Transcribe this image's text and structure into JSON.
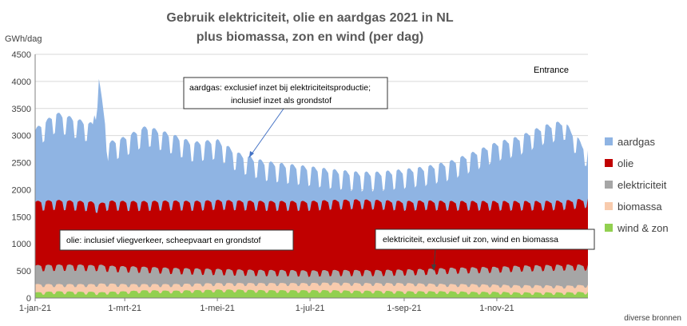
{
  "chart_data": {
    "type": "area",
    "stacked": true,
    "title_line1": "Gebruik elektriciteit, olie en aardgas 2021 in NL",
    "title_line2": "plus biomassa, zon en wind (per dag)",
    "ylabel": "GWh/dag",
    "ylim": [
      0,
      4500
    ],
    "yticks": [
      "0",
      "500",
      "1000",
      "1500",
      "2000",
      "2500",
      "3000",
      "3500",
      "4000",
      "4500"
    ],
    "xlim": [
      "2021-01-01",
      "2021-12-31"
    ],
    "xticks": [
      {
        "date": "2021-01-01",
        "label": "1-jan-21"
      },
      {
        "date": "2021-03-01",
        "label": "1-mrt-21"
      },
      {
        "date": "2021-05-01",
        "label": "1-mei-21"
      },
      {
        "date": "2021-07-01",
        "label": "1-jul-21"
      },
      {
        "date": "2021-09-01",
        "label": "1-sep-21"
      },
      {
        "date": "2021-11-01",
        "label": "1-nov-21"
      }
    ],
    "grid": true,
    "legend_position": "right",
    "series_order_bottom_to_top": [
      "wind & zon",
      "biomassa",
      "elektriciteit",
      "olie",
      "aardgas"
    ],
    "legend": [
      {
        "name": "aardgas",
        "color": "#8fb4e3"
      },
      {
        "name": "olie",
        "color": "#c00000"
      },
      {
        "name": "elektriciteit",
        "color": "#a6a6a6"
      },
      {
        "name": "biomassa",
        "color": "#f8cbad"
      },
      {
        "name": "wind & zon",
        "color": "#92d050"
      }
    ],
    "cumulative_tops": {
      "dates": [
        "2021-01-01",
        "2021-01-15",
        "2021-02-01",
        "2021-02-08",
        "2021-02-12",
        "2021-02-18",
        "2021-03-01",
        "2021-03-15",
        "2021-04-01",
        "2021-04-15",
        "2021-05-01",
        "2021-05-15",
        "2021-06-01",
        "2021-06-15",
        "2021-07-01",
        "2021-07-15",
        "2021-08-01",
        "2021-08-15",
        "2021-09-01",
        "2021-09-15",
        "2021-10-01",
        "2021-10-15",
        "2021-11-01",
        "2021-11-15",
        "2021-12-01",
        "2021-12-15",
        "2021-12-31"
      ],
      "aardgas": [
        2950,
        3250,
        3100,
        3050,
        3900,
        2700,
        2800,
        3000,
        2850,
        2700,
        2750,
        2500,
        2350,
        2300,
        2250,
        2200,
        2150,
        2150,
        2200,
        2250,
        2350,
        2500,
        2700,
        2800,
        3000,
        3100,
        2550
      ],
      "olie": [
        1700,
        1720,
        1700,
        1690,
        1650,
        1710,
        1700,
        1700,
        1710,
        1700,
        1720,
        1710,
        1700,
        1700,
        1700,
        1720,
        1730,
        1720,
        1700,
        1710,
        1700,
        1700,
        1700,
        1700,
        1700,
        1710,
        1750
      ],
      "elektriciteit": [
        550,
        560,
        560,
        550,
        560,
        540,
        530,
        520,
        500,
        490,
        480,
        470,
        460,
        460,
        450,
        460,
        460,
        460,
        470,
        480,
        500,
        510,
        520,
        540,
        550,
        560,
        560
      ],
      "biomassa": [
        230,
        230,
        230,
        230,
        240,
        240,
        230,
        230,
        230,
        240,
        250,
        250,
        250,
        250,
        250,
        260,
        250,
        250,
        250,
        240,
        230,
        230,
        220,
        210,
        210,
        200,
        220
      ],
      "wind & zon": [
        80,
        100,
        90,
        90,
        80,
        90,
        100,
        120,
        110,
        120,
        130,
        130,
        120,
        120,
        120,
        120,
        110,
        110,
        100,
        100,
        100,
        90,
        90,
        80,
        80,
        80,
        90
      ]
    },
    "annotations": [
      {
        "text": "Entrance"
      },
      {
        "text_line1": "aardgas: exclusief inzet bij elektriciteitsproductie;",
        "text_line2": "inclusief inzet als grondstof"
      },
      {
        "text": "olie: inclusief vliegverkeer, scheepvaart en grondstof"
      },
      {
        "text": "elektriciteit, exclusief uit zon, wind en biomassa"
      }
    ],
    "source": "diverse bronnen"
  }
}
